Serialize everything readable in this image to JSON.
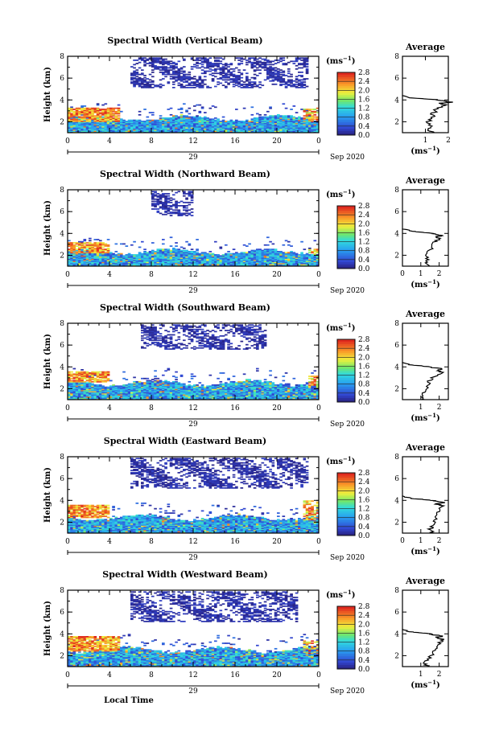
{
  "chart_data": [
    {
      "type": "heatmap",
      "title": "Spectral Width (Vertical Beam)",
      "ylabel": "Height (km)",
      "x_ticks": [
        "0",
        "4",
        "8",
        "12",
        "16",
        "20",
        "0"
      ],
      "y_ticks": [
        "2",
        "4",
        "6",
        "8"
      ],
      "xlim": [
        0,
        24
      ],
      "ylim": [
        1,
        8
      ],
      "date_day": "29",
      "date_month": "Sep 2020",
      "colorbar_unit": "(ms",
      "colorbar_unit_exp": "−1",
      "colorbar_unit_close": ")",
      "colorbar_ticks": [
        "0.0",
        "0.4",
        "0.8",
        "1.2",
        "1.6",
        "2.0",
        "2.4",
        "2.8"
      ],
      "average": {
        "title": "Average",
        "xlabel": "(ms",
        "xlabel_exp": "−1",
        "xlabel_close": ")",
        "x_ticks": [
          "1",
          "2"
        ],
        "xlim": [
          0,
          2
        ],
        "y_ticks": [
          "2",
          "4",
          "6",
          "8"
        ],
        "profile_height_km": [
          1.0,
          1.3,
          1.6,
          2.0,
          2.4,
          2.8,
          3.2,
          3.5,
          3.7,
          3.8,
          3.9,
          4.0,
          4.1,
          4.2,
          4.4
        ],
        "profile_value": [
          1.4,
          1.1,
          1.2,
          1.15,
          1.3,
          1.35,
          1.5,
          1.9,
          1.7,
          2.1,
          1.8,
          1.6,
          1.0,
          0.4,
          0.0
        ]
      },
      "echo_regions": {
        "bottom_layer": {
          "top_km": 2.3,
          "value_range": [
            0.4,
            1.4
          ]
        },
        "warm_left": {
          "time_h": [
            0,
            5
          ],
          "height_km": [
            2.0,
            3.3
          ],
          "value_range": [
            1.8,
            2.8
          ]
        },
        "warm_right": {
          "time_h": [
            22.5,
            24
          ],
          "height_km": [
            2.0,
            3.3
          ],
          "value_range": [
            1.8,
            2.8
          ]
        },
        "upper_patches": {
          "time_h": [
            6,
            23
          ],
          "height_km": [
            5.0,
            7.8
          ],
          "value_range": [
            0.0,
            0.4
          ]
        }
      }
    },
    {
      "type": "heatmap",
      "title": "Spectral Width (Northward Beam)",
      "ylabel": "Height (km)",
      "x_ticks": [
        "0",
        "4",
        "8",
        "12",
        "16",
        "20",
        "0"
      ],
      "y_ticks": [
        "2",
        "4",
        "6",
        "8"
      ],
      "xlim": [
        0,
        24
      ],
      "ylim": [
        1,
        8
      ],
      "date_day": "29",
      "date_month": "Sep 2020",
      "colorbar_unit": "(ms",
      "colorbar_unit_exp": "−1",
      "colorbar_unit_close": ")",
      "colorbar_ticks": [
        "0.0",
        "0.4",
        "0.8",
        "1.2",
        "1.6",
        "2.0",
        "2.4",
        "2.8"
      ],
      "average": {
        "title": "Average",
        "xlabel": "(ms",
        "xlabel_exp": "−1",
        "xlabel_close": ")",
        "x_ticks": [
          "0",
          "1",
          "2"
        ],
        "xlim": [
          0,
          2.5
        ],
        "y_ticks": [
          "2",
          "4",
          "6",
          "8"
        ],
        "profile_height_km": [
          1.0,
          1.3,
          1.6,
          2.0,
          2.4,
          2.8,
          3.2,
          3.5,
          3.7,
          3.8,
          3.9,
          4.0,
          4.1,
          4.2,
          4.4
        ],
        "profile_value": [
          1.5,
          1.3,
          1.4,
          1.3,
          1.5,
          1.6,
          1.7,
          2.0,
          1.8,
          2.2,
          1.9,
          1.6,
          1.1,
          0.5,
          0.0
        ]
      },
      "echo_regions": {
        "bottom_layer": {
          "top_km": 2.3,
          "value_range": [
            0.4,
            1.4
          ]
        },
        "warm_left": {
          "time_h": [
            0,
            4
          ],
          "height_km": [
            2.2,
            3.2
          ],
          "value_range": [
            1.8,
            2.8
          ]
        },
        "warm_right": {
          "time_h": [
            23,
            24
          ],
          "height_km": [
            2.2,
            2.6
          ],
          "value_range": [
            1.8,
            2.8
          ]
        },
        "upper_patches": {
          "time_h": [
            8,
            12
          ],
          "height_km": [
            5.5,
            7.8
          ],
          "value_range": [
            0.0,
            0.4
          ]
        }
      }
    },
    {
      "type": "heatmap",
      "title": "Spectral Width (Southward Beam)",
      "ylabel": "Height (km)",
      "x_ticks": [
        "0",
        "4",
        "8",
        "12",
        "16",
        "20",
        "0"
      ],
      "y_ticks": [
        "2",
        "4",
        "6",
        "8"
      ],
      "xlim": [
        0,
        24
      ],
      "ylim": [
        1,
        8
      ],
      "date_day": "29",
      "date_month": "Sep 2020",
      "colorbar_unit": "(ms",
      "colorbar_unit_exp": "−1",
      "colorbar_unit_close": ")",
      "colorbar_ticks": [
        "0.0",
        "0.4",
        "0.8",
        "1.2",
        "1.6",
        "2.0",
        "2.4",
        "2.8"
      ],
      "average": {
        "title": "Average",
        "xlabel": "(ms",
        "xlabel_exp": "−1",
        "xlabel_close": ")",
        "x_ticks": [
          "1",
          "2"
        ],
        "xlim": [
          0,
          2.5
        ],
        "y_ticks": [
          "2",
          "4",
          "6",
          "8"
        ],
        "profile_height_km": [
          1.0,
          1.3,
          1.6,
          2.0,
          2.4,
          2.8,
          3.2,
          3.5,
          3.7,
          3.8,
          3.9,
          4.0,
          4.1,
          4.2,
          4.4
        ],
        "profile_value": [
          1.2,
          1.0,
          1.1,
          1.3,
          1.4,
          1.5,
          1.8,
          2.2,
          1.9,
          2.3,
          1.8,
          1.5,
          1.0,
          0.4,
          0.0
        ]
      },
      "echo_regions": {
        "bottom_layer": {
          "top_km": 2.5,
          "value_range": [
            0.4,
            1.4
          ]
        },
        "warm_left": {
          "time_h": [
            0,
            4
          ],
          "height_km": [
            2.6,
            3.6
          ],
          "value_range": [
            1.8,
            2.8
          ]
        },
        "warm_right": {
          "time_h": [
            23,
            24
          ],
          "height_km": [
            2.2,
            3.2
          ],
          "value_range": [
            1.8,
            2.8
          ]
        },
        "upper_patches": {
          "time_h": [
            7,
            19
          ],
          "height_km": [
            5.5,
            7.8
          ],
          "value_range": [
            0.0,
            0.4
          ]
        }
      }
    },
    {
      "type": "heatmap",
      "title": "Spectral Width (Eastward Beam)",
      "ylabel": "Height (km)",
      "x_ticks": [
        "0",
        "4",
        "8",
        "12",
        "16",
        "20",
        "0"
      ],
      "y_ticks": [
        "2",
        "4",
        "6",
        "8"
      ],
      "xlim": [
        0,
        24
      ],
      "ylim": [
        1,
        8
      ],
      "date_day": "29",
      "date_month": "Sep 2020",
      "colorbar_unit": "(ms",
      "colorbar_unit_exp": "−1",
      "colorbar_unit_close": ")",
      "colorbar_ticks": [
        "0.0",
        "0.4",
        "0.8",
        "1.2",
        "1.6",
        "2.0",
        "2.4",
        "2.8"
      ],
      "average": {
        "title": "Average",
        "xlabel": "(ms",
        "xlabel_exp": "−1",
        "xlabel_close": ")",
        "x_ticks": [
          "0",
          "1",
          "2"
        ],
        "xlim": [
          0,
          2.5
        ],
        "y_ticks": [
          "2",
          "4",
          "6",
          "8"
        ],
        "profile_height_km": [
          1.0,
          1.3,
          1.6,
          2.0,
          2.4,
          2.8,
          3.2,
          3.5,
          3.7,
          3.8,
          3.9,
          4.0,
          4.1,
          4.2,
          4.4
        ],
        "profile_value": [
          1.7,
          1.5,
          1.6,
          1.7,
          1.8,
          1.9,
          2.0,
          2.2,
          1.8,
          2.3,
          1.9,
          1.6,
          1.0,
          0.4,
          0.0
        ]
      },
      "echo_regions": {
        "bottom_layer": {
          "top_km": 2.4,
          "value_range": [
            0.4,
            1.4
          ]
        },
        "warm_left": {
          "time_h": [
            0,
            4
          ],
          "height_km": [
            2.4,
            3.6
          ],
          "value_range": [
            1.8,
            2.8
          ]
        },
        "warm_right": {
          "time_h": [
            22.5,
            24
          ],
          "height_km": [
            2.2,
            4.0
          ],
          "value_range": [
            1.8,
            2.8
          ]
        },
        "upper_patches": {
          "time_h": [
            6,
            23
          ],
          "height_km": [
            5.0,
            7.8
          ],
          "value_range": [
            0.0,
            0.4
          ]
        }
      }
    },
    {
      "type": "heatmap",
      "title": "Spectral Width (Westward Beam)",
      "ylabel": "Height (km)",
      "x_ticks": [
        "0",
        "4",
        "8",
        "12",
        "16",
        "20",
        "0"
      ],
      "y_ticks": [
        "2",
        "4",
        "6",
        "8"
      ],
      "xlim": [
        0,
        24
      ],
      "ylim": [
        1,
        8
      ],
      "date_day": "29",
      "date_month": "Sep 2020",
      "xlabel": "Local Time",
      "colorbar_unit": "(ms",
      "colorbar_unit_exp": "−1",
      "colorbar_unit_close": ")",
      "colorbar_ticks": [
        "0.0",
        "0.4",
        "0.8",
        "1.2",
        "1.6",
        "2.0",
        "2.4",
        "2.8"
      ],
      "average": {
        "title": "Average",
        "xlabel": "(ms",
        "xlabel_exp": "−1",
        "xlabel_close": ")",
        "x_ticks": [
          "1",
          "2"
        ],
        "xlim": [
          0,
          2.5
        ],
        "y_ticks": [
          "2",
          "4",
          "6",
          "8"
        ],
        "profile_height_km": [
          1.0,
          1.3,
          1.6,
          2.0,
          2.4,
          2.8,
          3.2,
          3.5,
          3.7,
          3.8,
          3.9,
          4.0,
          4.1,
          4.2,
          4.4
        ],
        "profile_value": [
          1.4,
          1.2,
          1.3,
          1.6,
          1.7,
          1.8,
          2.0,
          2.2,
          1.8,
          2.3,
          1.7,
          1.5,
          1.0,
          0.4,
          0.0
        ]
      },
      "echo_regions": {
        "bottom_layer": {
          "top_km": 2.5,
          "value_range": [
            0.4,
            1.4
          ]
        },
        "warm_left": {
          "time_h": [
            0,
            5
          ],
          "height_km": [
            2.4,
            3.8
          ],
          "value_range": [
            1.8,
            2.8
          ]
        },
        "warm_right": {
          "time_h": [
            22.5,
            24
          ],
          "height_km": [
            2.2,
            3.4
          ],
          "value_range": [
            1.8,
            2.8
          ]
        },
        "upper_patches": {
          "time_h": [
            6,
            22
          ],
          "height_km": [
            5.0,
            7.8
          ],
          "value_range": [
            0.0,
            0.4
          ]
        }
      }
    }
  ]
}
